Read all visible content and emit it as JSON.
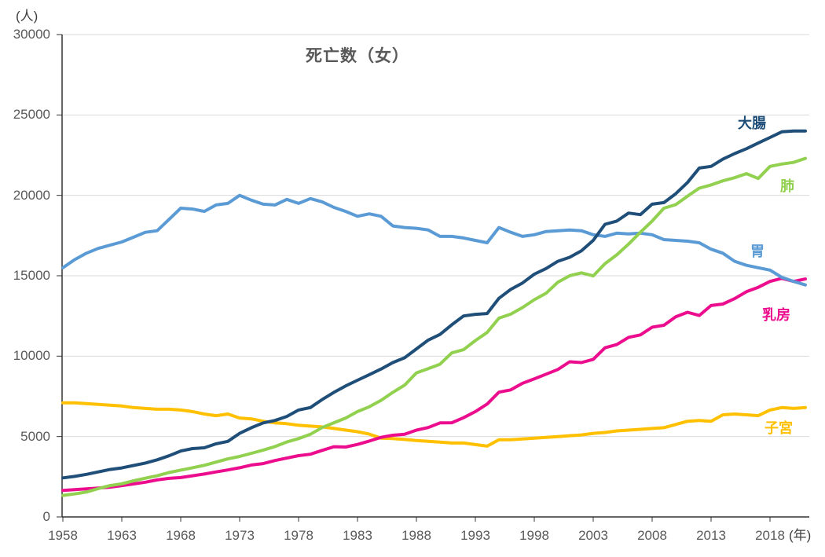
{
  "page": {
    "background": "#ffffff"
  },
  "colors": {
    "axis": "#333333",
    "grid": "#D9D9D9",
    "tick_text": "#595959",
    "title_text": "#595959"
  },
  "chart_data": {
    "type": "line",
    "title": "死亡数（女）",
    "y_unit": "(人)",
    "x_unit": "(年)",
    "ylim": [
      0,
      30000
    ],
    "yticks": [
      0,
      5000,
      10000,
      15000,
      20000,
      25000,
      30000
    ],
    "xticks": [
      1958,
      1963,
      1968,
      1973,
      1978,
      1983,
      1988,
      1993,
      1998,
      2003,
      2008,
      2013,
      2018
    ],
    "grid": "horizontal",
    "legend_position": "inline-right",
    "x_start": 1958,
    "x_end": 2021,
    "x": [
      1958,
      1959,
      1960,
      1961,
      1962,
      1963,
      1964,
      1965,
      1966,
      1967,
      1968,
      1969,
      1970,
      1971,
      1972,
      1973,
      1974,
      1975,
      1976,
      1977,
      1978,
      1979,
      1980,
      1981,
      1982,
      1983,
      1984,
      1985,
      1986,
      1987,
      1988,
      1989,
      1990,
      1991,
      1992,
      1993,
      1994,
      1995,
      1996,
      1997,
      1998,
      1999,
      2000,
      2001,
      2002,
      2003,
      2004,
      2005,
      2006,
      2007,
      2008,
      2009,
      2010,
      2011,
      2012,
      2013,
      2014,
      2015,
      2016,
      2017,
      2018,
      2019,
      2020,
      2021
    ],
    "series": [
      {
        "name": "daicho",
        "label": "大腸",
        "color": "#1F4E79",
        "values": [
          2430,
          2520,
          2650,
          2800,
          2950,
          3050,
          3200,
          3350,
          3550,
          3800,
          4100,
          4250,
          4300,
          4550,
          4700,
          5200,
          5550,
          5850,
          6000,
          6250,
          6650,
          6800,
          7300,
          7750,
          8150,
          8500,
          8850,
          9200,
          9600,
          9900,
          10450,
          11000,
          11350,
          11950,
          12500,
          12600,
          12650,
          13600,
          14150,
          14550,
          15100,
          15450,
          15900,
          16150,
          16550,
          17200,
          18200,
          18400,
          18900,
          18800,
          19450,
          19550,
          20100,
          20800,
          21700,
          21800,
          22250,
          22600,
          22900,
          23250,
          23600,
          23950,
          24000,
          24000
        ]
      },
      {
        "name": "hai",
        "label": "肺",
        "color": "#92D050",
        "values": [
          1340,
          1430,
          1550,
          1760,
          1950,
          2060,
          2250,
          2410,
          2560,
          2760,
          2910,
          3060,
          3210,
          3410,
          3610,
          3760,
          3960,
          4160,
          4380,
          4660,
          4870,
          5140,
          5560,
          5860,
          6150,
          6550,
          6850,
          7250,
          7750,
          8200,
          8960,
          9220,
          9500,
          10200,
          10400,
          10970,
          11470,
          12360,
          12610,
          13020,
          13510,
          13910,
          14600,
          15000,
          15180,
          14990,
          15750,
          16300,
          16970,
          17700,
          18400,
          19200,
          19420,
          19950,
          20450,
          20650,
          20900,
          21100,
          21350,
          21050,
          21800,
          21950,
          22050,
          22300
        ]
      },
      {
        "name": "i",
        "label": "胃",
        "color": "#5B9BD5",
        "values": [
          15500,
          16000,
          16400,
          16700,
          16900,
          17100,
          17400,
          17700,
          17800,
          18500,
          19200,
          19150,
          19000,
          19400,
          19500,
          20000,
          19700,
          19450,
          19400,
          19750,
          19500,
          19800,
          19600,
          19250,
          19000,
          18700,
          18850,
          18700,
          18100,
          18000,
          17950,
          17850,
          17450,
          17450,
          17350,
          17200,
          17050,
          18000,
          17700,
          17450,
          17550,
          17750,
          17800,
          17850,
          17800,
          17550,
          17450,
          17650,
          17600,
          17650,
          17550,
          17250,
          17200,
          17150,
          17050,
          16650,
          16400,
          15900,
          15650,
          15500,
          15350,
          14900,
          14650,
          14430
        ]
      },
      {
        "name": "nyubo",
        "label": "乳房",
        "color": "#EC0C8E",
        "values": [
          1650,
          1700,
          1750,
          1800,
          1850,
          1950,
          2050,
          2160,
          2300,
          2400,
          2450,
          2560,
          2670,
          2800,
          2920,
          3060,
          3230,
          3320,
          3510,
          3660,
          3810,
          3900,
          4140,
          4370,
          4350,
          4510,
          4720,
          4950,
          5080,
          5140,
          5400,
          5560,
          5850,
          5860,
          6170,
          6550,
          7020,
          7760,
          7900,
          8310,
          8590,
          8880,
          9170,
          9650,
          9600,
          9800,
          10520,
          10720,
          11170,
          11320,
          11800,
          11920,
          12450,
          12730,
          12530,
          13150,
          13240,
          13580,
          14010,
          14280,
          14650,
          14840,
          14650,
          14800
        ]
      },
      {
        "name": "shikyu",
        "label": "子宮",
        "color": "#FFC000",
        "values": [
          7100,
          7100,
          7050,
          7000,
          6950,
          6900,
          6800,
          6750,
          6700,
          6700,
          6650,
          6550,
          6400,
          6300,
          6400,
          6150,
          6100,
          5950,
          5850,
          5800,
          5700,
          5650,
          5600,
          5500,
          5400,
          5300,
          5150,
          4900,
          4870,
          4820,
          4750,
          4700,
          4650,
          4600,
          4600,
          4500,
          4400,
          4800,
          4800,
          4850,
          4900,
          4950,
          5000,
          5050,
          5100,
          5200,
          5250,
          5350,
          5400,
          5450,
          5500,
          5550,
          5750,
          5950,
          6000,
          5950,
          6350,
          6400,
          6350,
          6300,
          6650,
          6800,
          6750,
          6800
        ]
      }
    ]
  }
}
